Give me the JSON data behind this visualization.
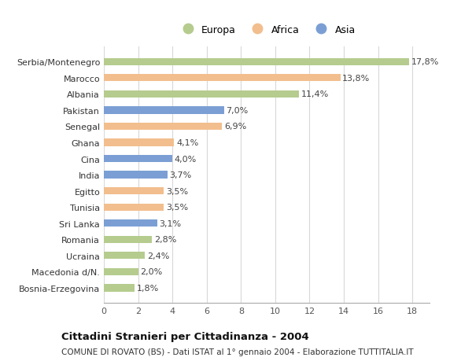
{
  "categories": [
    "Bosnia-Erzegovina",
    "Macedonia d/N.",
    "Ucraina",
    "Romania",
    "Sri Lanka",
    "Tunisia",
    "Egitto",
    "India",
    "Cina",
    "Ghana",
    "Senegal",
    "Pakistan",
    "Albania",
    "Marocco",
    "Serbia/Montenegro"
  ],
  "values": [
    1.8,
    2.0,
    2.4,
    2.8,
    3.1,
    3.5,
    3.5,
    3.7,
    4.0,
    4.1,
    6.9,
    7.0,
    11.4,
    13.8,
    17.8
  ],
  "continents": [
    "Europa",
    "Europa",
    "Europa",
    "Europa",
    "Asia",
    "Africa",
    "Africa",
    "Asia",
    "Asia",
    "Africa",
    "Africa",
    "Asia",
    "Europa",
    "Africa",
    "Europa"
  ],
  "colors": {
    "Europa": "#b5cc8e",
    "Africa": "#f2be8e",
    "Asia": "#7b9fd4"
  },
  "title_bold": "Cittadini Stranieri per Cittadinanza - 2004",
  "subtitle": "COMUNE DI ROVATO (BS) - Dati ISTAT al 1° gennaio 2004 - Elaborazione TUTTITALIA.IT",
  "xlim": [
    0,
    19
  ],
  "xticks": [
    0,
    2,
    4,
    6,
    8,
    10,
    12,
    14,
    16,
    18
  ],
  "bar_height": 0.45,
  "grid_color": "#d8d8d8",
  "background_color": "#ffffff",
  "label_fontsize": 8,
  "value_fontsize": 8,
  "title_fontsize": 9.5,
  "subtitle_fontsize": 7.5,
  "legend_fontsize": 9
}
